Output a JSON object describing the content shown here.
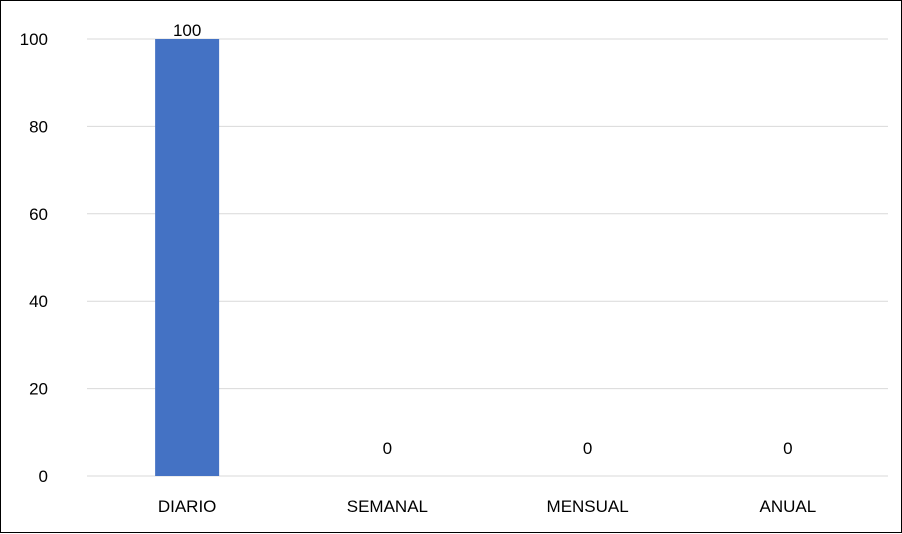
{
  "chart_data": {
    "type": "bar",
    "categories": [
      "DIARIO",
      "SEMANAL",
      "MENSUAL",
      "ANUAL"
    ],
    "values": [
      100,
      0,
      0,
      0
    ],
    "data_labels": [
      "100",
      "0",
      "0",
      "0"
    ],
    "title": "",
    "xlabel": "",
    "ylabel": "",
    "ylim": [
      0,
      100
    ],
    "yticks": [
      0,
      20,
      40,
      60,
      80,
      100
    ],
    "grid": true,
    "legend": "none",
    "colors": {
      "bar": "#4472C4",
      "grid": "#D9D9D9",
      "text": "#000000"
    }
  }
}
